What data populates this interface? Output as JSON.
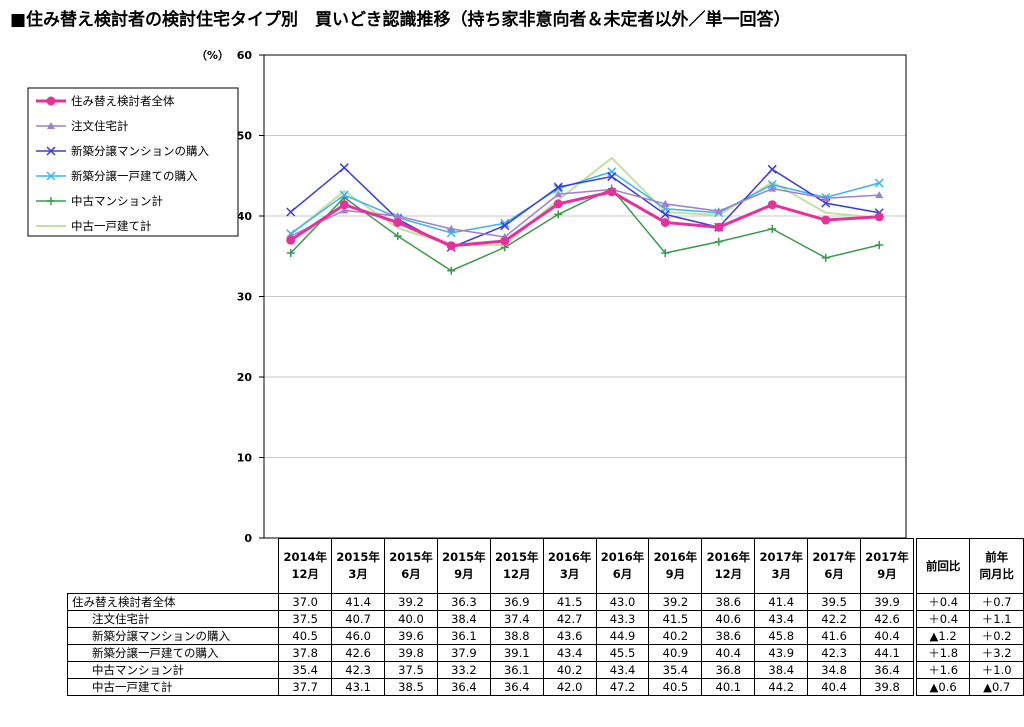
{
  "title": "■住み替え検討者の検討住宅タイプ別　買いどき認識推移（持ち家非意向者＆未定者以外／単一回答）",
  "chart_data": {
    "type": "line",
    "y_unit": "（%）",
    "ylim": [
      0,
      60
    ],
    "yticks": [
      "0",
      "10",
      "20",
      "30",
      "40",
      "50",
      "60"
    ],
    "categories": [
      {
        "year": "2014年",
        "month": "12月"
      },
      {
        "year": "2015年",
        "month": "3月"
      },
      {
        "year": "2015年",
        "month": "6月"
      },
      {
        "year": "2015年",
        "month": "9月"
      },
      {
        "year": "2015年",
        "month": "12月"
      },
      {
        "year": "2016年",
        "month": "3月"
      },
      {
        "year": "2016年",
        "month": "6月"
      },
      {
        "year": "2016年",
        "month": "9月"
      },
      {
        "year": "2016年",
        "month": "12月"
      },
      {
        "year": "2017年",
        "month": "3月"
      },
      {
        "year": "2017年",
        "month": "6月"
      },
      {
        "year": "2017年",
        "month": "9月"
      }
    ],
    "series": [
      {
        "name": "住み替え検討者全体",
        "color": "#e8309a",
        "marker": "circle",
        "width": 3,
        "values": [
          37.0,
          41.4,
          39.2,
          36.3,
          36.9,
          41.5,
          43.0,
          39.2,
          38.6,
          41.4,
          39.5,
          39.9
        ],
        "prev": "＋0.4",
        "yoy": "＋0.7"
      },
      {
        "name": "注文住宅計",
        "color": "#9e7fd0",
        "marker": "triangle",
        "width": 1.5,
        "values": [
          37.5,
          40.7,
          40.0,
          38.4,
          37.4,
          42.7,
          43.3,
          41.5,
          40.6,
          43.4,
          42.2,
          42.6
        ],
        "prev": "＋0.4",
        "yoy": "＋1.1"
      },
      {
        "name": "新築分譲マンションの購入",
        "color": "#3a3ae6",
        "marker": "x",
        "width": 1.5,
        "values": [
          40.5,
          46.0,
          39.6,
          36.1,
          38.8,
          43.6,
          44.9,
          40.2,
          38.6,
          45.8,
          41.6,
          40.4
        ],
        "prev": "▲1.2",
        "yoy": "＋0.2"
      },
      {
        "name": "新築分譲一戸建ての購入",
        "color": "#3cb4f0",
        "marker": "x",
        "width": 1.5,
        "values": [
          37.8,
          42.6,
          39.8,
          37.9,
          39.1,
          43.4,
          45.5,
          40.9,
          40.4,
          43.9,
          42.3,
          44.1
        ],
        "prev": "＋1.8",
        "yoy": "＋3.2"
      },
      {
        "name": "中古マンション計",
        "color": "#3a9a4c",
        "marker": "plus",
        "width": 1.5,
        "values": [
          35.4,
          42.3,
          37.5,
          33.2,
          36.1,
          40.2,
          43.4,
          35.4,
          36.8,
          38.4,
          34.8,
          36.4
        ],
        "prev": "＋1.6",
        "yoy": "＋1.0"
      },
      {
        "name": "中古一戸建て計",
        "color": "#c4e0a0",
        "marker": "none",
        "width": 2,
        "values": [
          37.7,
          43.1,
          38.5,
          36.4,
          36.4,
          42.0,
          47.2,
          40.5,
          40.1,
          44.2,
          40.4,
          39.8
        ],
        "prev": "▲0.6",
        "yoy": "▲0.7"
      }
    ],
    "grid": true,
    "legend_position": "top-left"
  },
  "table": {
    "prev_label": "前回比",
    "yoy_label_1": "前年",
    "yoy_label_2": "同月比"
  }
}
